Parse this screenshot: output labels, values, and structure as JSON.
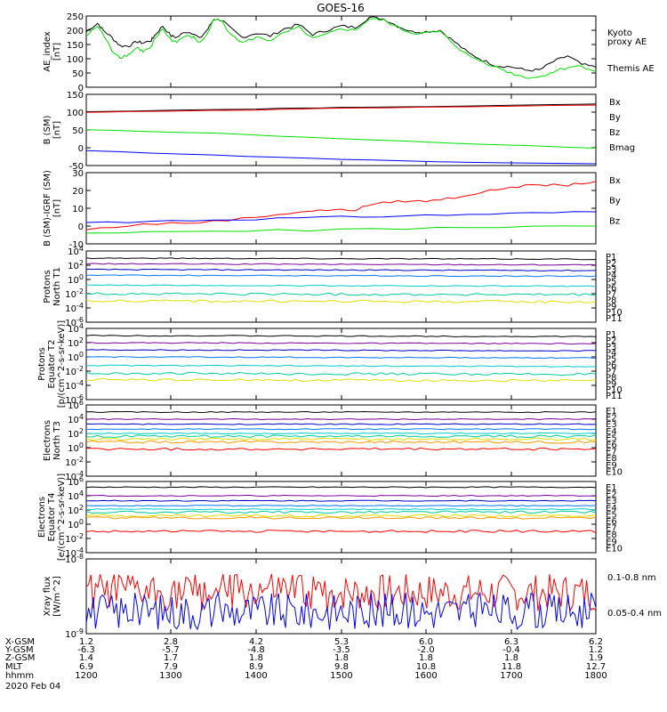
{
  "chart_data": {
    "title": "GOES-16",
    "type": "line",
    "time_ticks": [
      "1200",
      "1300",
      "1400",
      "1500",
      "1600",
      "1700",
      "1800"
    ],
    "panels": [
      {
        "ylabel": [
          "AE_index",
          "[nT]"
        ],
        "yticks": [
          "250",
          "200",
          "150",
          "100",
          "50",
          "0"
        ],
        "ylim": [
          0,
          250
        ],
        "legend": [
          {
            "text": "Kyoto",
            "color": "#00e000"
          },
          {
            "text": "proxy AE",
            "color": "#00e000"
          },
          {
            "text": "Themis AE",
            "color": "#000000"
          }
        ],
        "series": [
          {
            "color": "#000000",
            "x": [
              0,
              8,
              12,
              18,
              24,
              30,
              36,
              40,
              46,
              48,
              54,
              60,
              64,
              70,
              76,
              80,
              86,
              90,
              96,
              100,
              110,
              120,
              130,
              140,
              150,
              160,
              170,
              180,
              190,
              200,
              210,
              220,
              230,
              240,
              250,
              260,
              270,
              280,
              290,
              300,
              310,
              320,
              330,
              340,
              350,
              360
            ],
            "y": [
              195,
              225,
              200,
              175,
              145,
              145,
              160,
              155,
              165,
              180,
              215,
              180,
              175,
              195,
              190,
              170,
              205,
              240,
              235,
              215,
              175,
              190,
              180,
              205,
              220,
              185,
              200,
              215,
              210,
              245,
              240,
              215,
              195,
              195,
              200,
              160,
              120,
              95,
              75,
              72,
              60,
              60,
              90,
              110,
              80,
              70
            ]
          },
          {
            "color": "#00e000",
            "x": [
              0,
              8,
              12,
              18,
              24,
              30,
              36,
              40,
              46,
              48,
              54,
              60,
              64,
              70,
              76,
              80,
              86,
              90,
              96,
              100,
              110,
              120,
              130,
              140,
              150,
              160,
              170,
              180,
              190,
              200,
              210,
              220,
              230,
              240,
              250,
              260,
              270,
              280,
              290,
              300,
              310,
              320,
              330,
              340,
              350,
              360
            ],
            "y": [
              180,
              215,
              185,
              130,
              105,
              115,
              140,
              125,
              140,
              165,
              205,
              165,
              160,
              180,
              175,
              155,
              190,
              240,
              230,
              200,
              155,
              175,
              165,
              190,
              210,
              170,
              185,
              205,
              200,
              240,
              235,
              210,
              190,
              190,
              195,
              150,
              110,
              90,
              70,
              50,
              35,
              35,
              55,
              70,
              75,
              55
            ]
          }
        ]
      },
      {
        "ylabel": [
          "B (SM)",
          "[nT]"
        ],
        "yticks": [
          "150",
          "100",
          "50",
          "0",
          "-50"
        ],
        "ylim": [
          -55,
          150
        ],
        "legend": [
          {
            "text": "Bx",
            "color": "#0000ff"
          },
          {
            "text": "By",
            "color": "#00e000"
          },
          {
            "text": "Bz",
            "color": "#ff0000"
          },
          {
            "text": "Bmag",
            "color": "#000000"
          }
        ],
        "series": [
          {
            "color": "#000000",
            "x": [
              0,
              120,
              180,
              240,
              360
            ],
            "y": [
              100,
              108,
              112,
              115,
              122
            ]
          },
          {
            "color": "#ff0000",
            "x": [
              0,
              120,
              180,
              240,
              360
            ],
            "y": [
              98,
              105,
              110,
              113,
              119
            ]
          },
          {
            "color": "#00e000",
            "x": [
              0,
              90,
              180,
              270,
              360
            ],
            "y": [
              48,
              38,
              22,
              8,
              -5
            ]
          },
          {
            "color": "#0000ff",
            "x": [
              0,
              90,
              180,
              270,
              360
            ],
            "y": [
              -12,
              -25,
              -37,
              -46,
              -50
            ]
          }
        ]
      },
      {
        "ylabel": [
          "B (SM)-IGRF (SM)",
          "[nT]"
        ],
        "yticks": [
          "30",
          "20",
          "10",
          "0",
          "-10"
        ],
        "ylim": [
          -10,
          30
        ],
        "legend": [
          {
            "text": "Bx",
            "color": "#0000ff"
          },
          {
            "text": "By",
            "color": "#00e000"
          },
          {
            "text": "Bz",
            "color": "#ff0000"
          }
        ],
        "series": [
          {
            "color": "#ff0000",
            "x": [
              0,
              40,
              80,
              120,
              150,
              170,
              190,
              200,
              220,
              240,
              260,
              280,
              300,
              320,
              340,
              360
            ],
            "y": [
              -2,
              1,
              2,
              5,
              8,
              9,
              9,
              12,
              14,
              14,
              16,
              19,
              22,
              23,
              23,
              25
            ]
          },
          {
            "color": "#0000ff",
            "x": [
              0,
              60,
              120,
              180,
              240,
              300,
              360
            ],
            "y": [
              2,
              3,
              4,
              5,
              6,
              7,
              8
            ]
          },
          {
            "color": "#00e000",
            "x": [
              0,
              90,
              180,
              270,
              360
            ],
            "y": [
              -4,
              -3,
              -2,
              -1,
              0
            ]
          }
        ]
      },
      {
        "ylabel": [
          "Protons",
          "North T1"
        ],
        "yticks": [
          "10^4",
          "10^2",
          "10^0",
          "10^-2",
          "10^-4",
          "10^-6"
        ],
        "ylim_log10": [
          -6,
          4
        ],
        "legend": [
          {
            "text": "P1",
            "color": "#000000"
          },
          {
            "text": "P2",
            "color": "#7a0099"
          },
          {
            "text": "P3",
            "color": "#0000cc"
          },
          {
            "text": "P4",
            "color": "#0077ff"
          },
          {
            "text": "P5",
            "color": "#00cccc"
          },
          {
            "text": "P6",
            "color": "#00cc99"
          },
          {
            "text": "P7",
            "color": "#e0e000"
          },
          {
            "text": "P8",
            "color": "#ff9900"
          },
          {
            "text": "P9",
            "color": "#ff6600"
          },
          {
            "text": "P10",
            "color": "#ff0000"
          },
          {
            "text": "P11",
            "color": "#cc0000"
          }
        ],
        "series": [
          {
            "color": "#000000",
            "level_log10": 3.0
          },
          {
            "color": "#7a0099",
            "level_log10": 2.2
          },
          {
            "color": "#0000cc",
            "level_log10": 1.4
          },
          {
            "color": "#0077ff",
            "level_log10": 0.6
          },
          {
            "color": "#00cccc",
            "level_log10": -0.8
          },
          {
            "color": "#00cc99",
            "level_log10": -2.0
          },
          {
            "color": "#e0e000",
            "level_log10": -3.0
          }
        ]
      },
      {
        "ylabel": [
          "Protons",
          "Equator T2",
          "[p/(cm^2-s-sr-keV)]"
        ],
        "yticks": [
          "10^4",
          "10^2",
          "10^0",
          "10^-2",
          "10^-4",
          "10^-6"
        ],
        "ylim_log10": [
          -6,
          4
        ],
        "legend": [
          {
            "text": "P1",
            "color": "#000000"
          },
          {
            "text": "P2",
            "color": "#7a0099"
          },
          {
            "text": "P3",
            "color": "#0000cc"
          },
          {
            "text": "P4",
            "color": "#0077ff"
          },
          {
            "text": "P5",
            "color": "#00cccc"
          },
          {
            "text": "P6",
            "color": "#00cc99"
          },
          {
            "text": "P7",
            "color": "#e0e000"
          },
          {
            "text": "P8",
            "color": "#ff9900"
          },
          {
            "text": "P9",
            "color": "#ff6600"
          },
          {
            "text": "P10",
            "color": "#ff0000"
          },
          {
            "text": "P11",
            "color": "#cc0000"
          }
        ],
        "series": [
          {
            "color": "#000000",
            "level_log10": 3.0
          },
          {
            "color": "#7a0099",
            "level_log10": 2.0
          },
          {
            "color": "#0000cc",
            "level_log10": 1.0
          },
          {
            "color": "#0077ff",
            "level_log10": 0.0
          },
          {
            "color": "#00cccc",
            "level_log10": -1.2
          },
          {
            "color": "#00cc99",
            "level_log10": -2.3
          },
          {
            "color": "#e0e000",
            "level_log10": -3.2
          }
        ]
      },
      {
        "ylabel": [
          "Electrons",
          "North T3"
        ],
        "yticks": [
          "10^6",
          "10^4",
          "10^2",
          "10^0",
          "10^-2",
          "10^-4"
        ],
        "ylim_log10": [
          -4,
          6
        ],
        "legend": [
          {
            "text": "E1",
            "color": "#000000"
          },
          {
            "text": "E2",
            "color": "#7a0099"
          },
          {
            "text": "E3",
            "color": "#0000cc"
          },
          {
            "text": "E4",
            "color": "#0077ff"
          },
          {
            "text": "E5",
            "color": "#00cccc"
          },
          {
            "text": "E6",
            "color": "#00cc99"
          },
          {
            "text": "E7",
            "color": "#e0e000"
          },
          {
            "text": "E8",
            "color": "#ff9900"
          },
          {
            "text": "E9",
            "color": "#ff0000"
          },
          {
            "text": "E10",
            "color": "#cc0000"
          }
        ],
        "series": [
          {
            "color": "#000000",
            "level_log10": 5.0
          },
          {
            "color": "#7a0099",
            "level_log10": 4.0
          },
          {
            "color": "#0000cc",
            "level_log10": 3.3
          },
          {
            "color": "#0077ff",
            "level_log10": 2.6
          },
          {
            "color": "#00cccc",
            "level_log10": 2.0
          },
          {
            "color": "#00cc99",
            "level_log10": 1.6
          },
          {
            "color": "#e0e000",
            "level_log10": 1.2
          },
          {
            "color": "#ff9900",
            "level_log10": 0.8
          },
          {
            "color": "#ff0000",
            "level_log10": -0.2
          }
        ]
      },
      {
        "ylabel": [
          "Electrons",
          "Equator T4",
          "[e/(cm^2-s-sr-keV)]"
        ],
        "yticks": [
          "10^6",
          "10^4",
          "10^2",
          "10^0",
          "10^-2",
          "10^-4"
        ],
        "ylim_log10": [
          -4,
          6
        ],
        "legend": [
          {
            "text": "E1",
            "color": "#000000"
          },
          {
            "text": "E2",
            "color": "#7a0099"
          },
          {
            "text": "E3",
            "color": "#0000cc"
          },
          {
            "text": "E4",
            "color": "#0077ff"
          },
          {
            "text": "E5",
            "color": "#00cccc"
          },
          {
            "text": "E6",
            "color": "#00cc99"
          },
          {
            "text": "E7",
            "color": "#e0e000"
          },
          {
            "text": "E8",
            "color": "#ff9900"
          },
          {
            "text": "E9",
            "color": "#ff0000"
          },
          {
            "text": "E10",
            "color": "#cc0000"
          }
        ],
        "series": [
          {
            "color": "#000000",
            "level_log10": 5.2
          },
          {
            "color": "#7a0099",
            "level_log10": 4.0
          },
          {
            "color": "#0000cc",
            "level_log10": 3.3
          },
          {
            "color": "#0077ff",
            "level_log10": 2.6
          },
          {
            "color": "#00cccc",
            "level_log10": 2.1
          },
          {
            "color": "#00cc99",
            "level_log10": 1.7
          },
          {
            "color": "#e0e000",
            "level_log10": 1.2
          },
          {
            "color": "#ff9900",
            "level_log10": 0.9
          },
          {
            "color": "#ff0000",
            "level_log10": -1.0
          }
        ]
      },
      {
        "ylabel": [
          "Xray flux",
          "[W/m^2]"
        ],
        "yticks": [
          "10^-8",
          "10^-9"
        ],
        "ylim_log10": [
          -9,
          -8
        ],
        "legend": [
          {
            "text": "0.1-0.8 nm",
            "color": "#ff0000"
          },
          {
            "text": "0.05-0.4 nm",
            "color": "#0000ff"
          }
        ],
        "series": [
          {
            "color": "#ff0000",
            "level_log10": -8.45
          },
          {
            "color": "#0000ff",
            "level_log10": -8.7
          }
        ]
      }
    ],
    "ephemeris": [
      {
        "label": "X-GSM",
        "values": [
          "1.2",
          "2.8",
          "4.2",
          "5.3",
          "6.0",
          "6.3",
          "6.2"
        ]
      },
      {
        "label": "Y-GSM",
        "values": [
          "-6.3",
          "-5.7",
          "-4.8",
          "-3.5",
          "-2.0",
          "-0.4",
          "1.2"
        ]
      },
      {
        "label": "Z-GSM",
        "values": [
          "1.4",
          "1.7",
          "1.8",
          "1.8",
          "1.8",
          "1.8",
          "1.9"
        ]
      },
      {
        "label": "MLT",
        "values": [
          "6.9",
          "7.9",
          "8.9",
          "9.8",
          "10.8",
          "11.8",
          "12.7"
        ]
      },
      {
        "label": "hhmm",
        "values": [
          "1200",
          "1300",
          "1400",
          "1500",
          "1600",
          "1700",
          "1800"
        ]
      }
    ],
    "date": "2020 Feb 04"
  }
}
